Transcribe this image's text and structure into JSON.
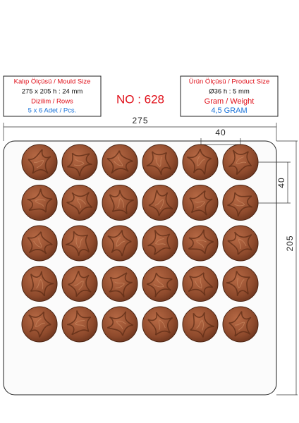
{
  "mould_box": {
    "title": "Kalıp Ölçüsü / Mould Size",
    "size": "275 x 205 h : 24 mm",
    "rows_title": "Dizilim / Rows",
    "rows": "5 x 6 Adet / Pcs."
  },
  "model_number": "NO : 628",
  "product_box": {
    "title": "Ürün Ölçüsü / Product Size",
    "size": "Ø36 h : 5 mm",
    "weight_title": "Gram / Weight",
    "weight": "4,5 GRAM"
  },
  "dimensions": {
    "tray_width": "275",
    "cavity_width": "40",
    "cavity_height": "40",
    "tray_height": "205"
  }
}
